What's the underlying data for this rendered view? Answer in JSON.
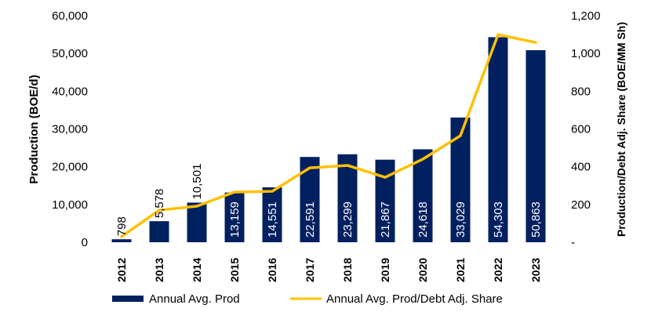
{
  "chart_data": {
    "type": "bar+line",
    "title": "",
    "categories": [
      "2012",
      "2013",
      "2014",
      "2015",
      "2016",
      "2017",
      "2018",
      "2019",
      "2020",
      "2021",
      "2022",
      "2023"
    ],
    "series": [
      {
        "name": "Annual Avg. Prod",
        "type": "bar",
        "axis": "left",
        "color": "#002060",
        "values": [
          798,
          5578,
          10501,
          13159,
          14551,
          22591,
          23299,
          21867,
          24618,
          33029,
          54303,
          50863
        ],
        "labels": [
          "798",
          "5,578",
          "10,501",
          "13,159",
          "14,551",
          "22,591",
          "23,299",
          "21,867",
          "24,618",
          "33,029",
          "54,303",
          "50,863"
        ]
      },
      {
        "name": "Annual Avg. Prod/Debt Adj. Share",
        "type": "line",
        "axis": "right",
        "color": "#FFC000",
        "values": [
          30,
          170,
          191,
          266,
          270,
          394,
          407,
          344,
          440,
          564,
          1100,
          1058
        ]
      }
    ],
    "ylabel": "Production (BOE/d)",
    "y2label": "Production/Debt Adj. Share (BOE/MM Sh)",
    "ylim": [
      0,
      60000
    ],
    "y2lim": [
      0,
      1200
    ],
    "yticks": [
      "0",
      "10,000",
      "20,000",
      "30,000",
      "40,000",
      "50,000",
      "60,000"
    ],
    "y2ticks": [
      "-",
      "200",
      "400",
      "600",
      "800",
      "1,000",
      "1,200"
    ],
    "grid": false,
    "legend": "bottom"
  }
}
